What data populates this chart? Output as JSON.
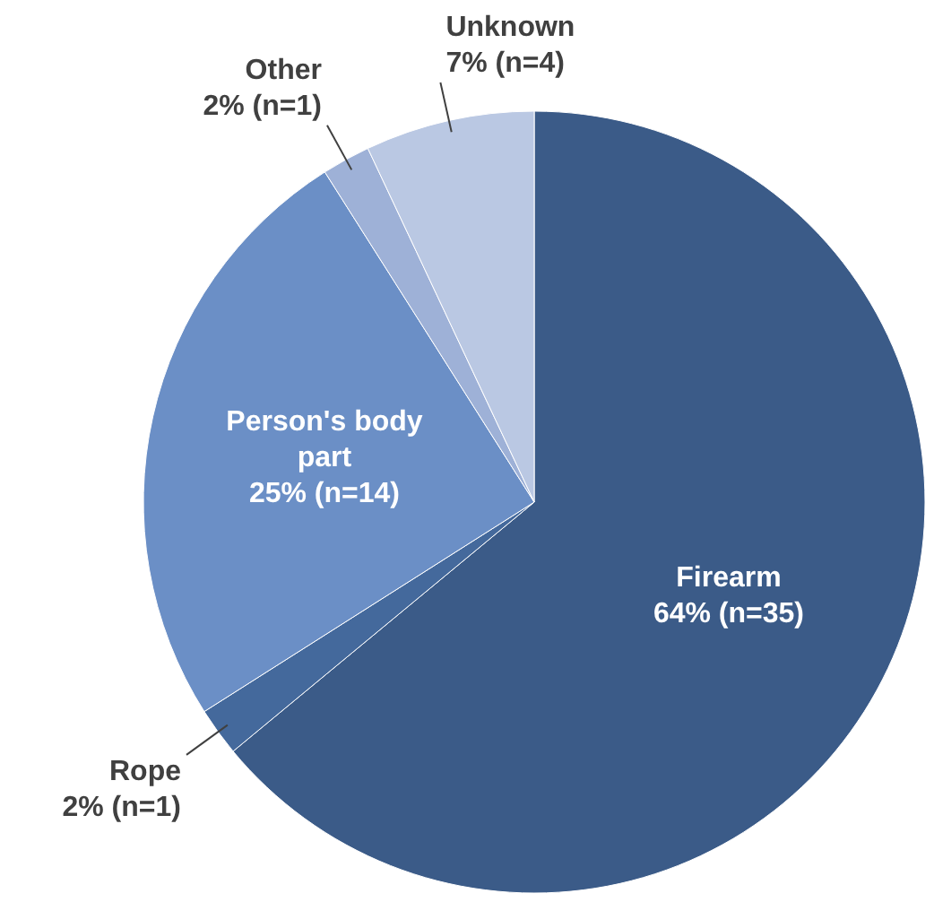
{
  "chart_data": {
    "type": "pie",
    "categories": [
      "Firearm",
      "Rope",
      "Person's body part",
      "Other",
      "Unknown"
    ],
    "values": [
      64,
      2,
      25,
      2,
      7
    ],
    "value_labels": [
      "64% (n=35)",
      "2% (n=1)",
      "25% (n=14)",
      "2% (n=1)",
      "7% (n=4)"
    ],
    "colors": [
      "#3b5b88",
      "#44699c",
      "#6b8fc6",
      "#9eb1d7",
      "#bac8e3"
    ]
  }
}
